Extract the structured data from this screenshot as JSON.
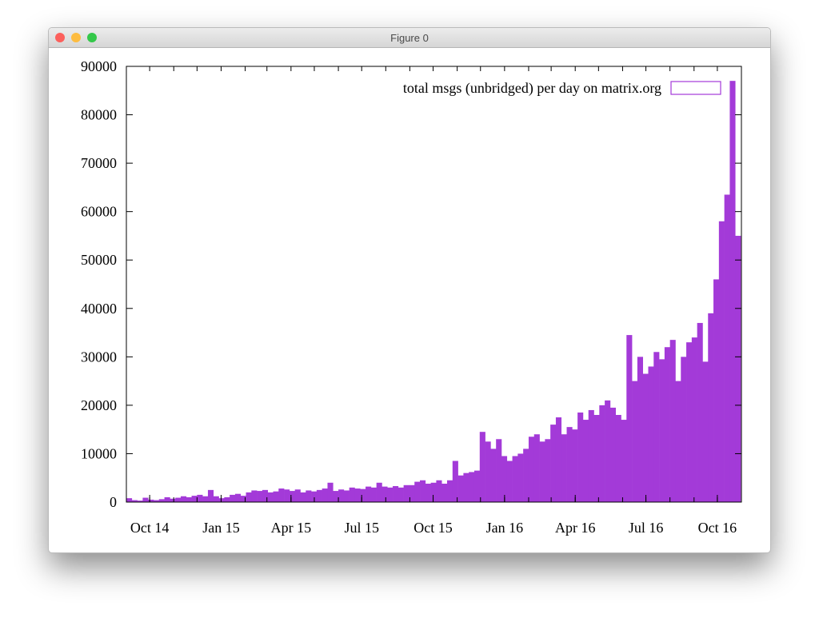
{
  "window": {
    "title": "Figure 0",
    "buttons": {
      "close": "#fc605c",
      "minimize": "#fdbc40",
      "zoom": "#34c84a"
    }
  },
  "chart_data": {
    "type": "bar",
    "title": "",
    "xlabel": "",
    "ylabel": "",
    "legend": {
      "label": "total msgs (unbridged) per day on matrix.org",
      "position": "top-right"
    },
    "color": "#a33ad8",
    "x_start": "2014-09-01",
    "x_end": "2016-10-31",
    "bin": "week",
    "ylim": [
      0,
      90000
    ],
    "yticks": [
      0,
      10000,
      20000,
      30000,
      40000,
      50000,
      60000,
      70000,
      80000,
      90000
    ],
    "xticks": [
      {
        "date": "2014-10-01",
        "label": "Oct 14"
      },
      {
        "date": "2015-01-01",
        "label": "Jan 15"
      },
      {
        "date": "2015-04-01",
        "label": "Apr 15"
      },
      {
        "date": "2015-07-01",
        "label": "Jul 15"
      },
      {
        "date": "2015-10-01",
        "label": "Oct 15"
      },
      {
        "date": "2016-01-01",
        "label": "Jan 16"
      },
      {
        "date": "2016-04-01",
        "label": "Apr 16"
      },
      {
        "date": "2016-07-01",
        "label": "Jul 16"
      },
      {
        "date": "2016-10-01",
        "label": "Oct 16"
      }
    ],
    "values": [
      800,
      400,
      300,
      900,
      500,
      400,
      600,
      1000,
      700,
      900,
      1200,
      1000,
      1300,
      1500,
      1200,
      2500,
      1200,
      800,
      1000,
      1500,
      1700,
      1300,
      2000,
      2400,
      2300,
      2500,
      2000,
      2200,
      2800,
      2600,
      2300,
      2600,
      2000,
      2400,
      2200,
      2500,
      2800,
      4000,
      2300,
      2600,
      2400,
      3000,
      2800,
      2700,
      3200,
      3000,
      4000,
      3200,
      3000,
      3300,
      3000,
      3500,
      3500,
      4200,
      4500,
      3800,
      4000,
      4500,
      3800,
      4500,
      8500,
      5500,
      6000,
      6200,
      6500,
      14500,
      12500,
      11000,
      13000,
      9500,
      8500,
      9500,
      10000,
      11000,
      13500,
      14000,
      12500,
      13000,
      16000,
      17500,
      14000,
      15500,
      15000,
      18500,
      17000,
      19000,
      18000,
      20000,
      21000,
      19500,
      18000,
      17000,
      34500,
      25000,
      30000,
      26500,
      28000,
      31000,
      29500,
      32000,
      33500,
      25000,
      30000,
      33000,
      34000,
      37000,
      29000,
      39000,
      46000,
      58000,
      63500,
      87000,
      55000
    ]
  }
}
